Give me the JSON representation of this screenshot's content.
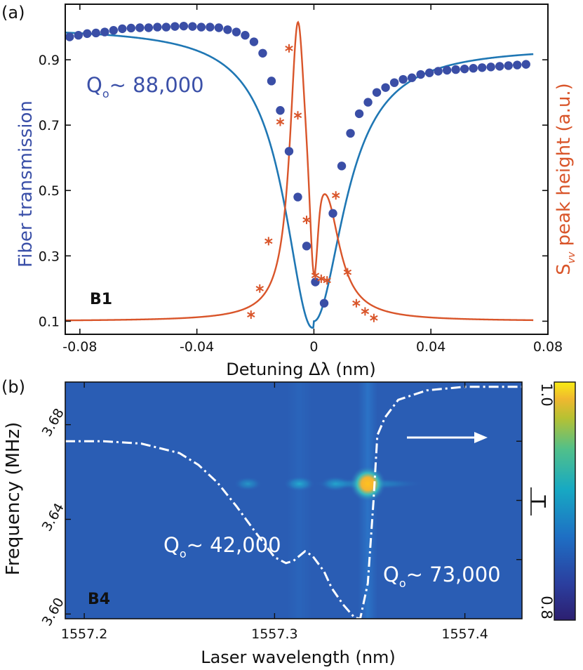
{
  "chart_data": [
    {
      "type": "scatter",
      "panel_label": "(a)",
      "sample_label": "B1",
      "annotation": {
        "q_prefix": "Q",
        "q_subscript": "o",
        "q_value": "~ 88,000"
      },
      "xlabel": "Detuning  Δλ (nm)",
      "ylabel_left": "Fiber transmission",
      "ylabel_right_prefix": "S",
      "ylabel_right_subscript": "vv",
      "ylabel_right_suffix": " peak height (a.u.)",
      "xlim": [
        -0.085,
        0.08
      ],
      "ylim": [
        0.06,
        1.07
      ],
      "xticks": [
        -0.08,
        -0.04,
        0,
        0.04,
        0.08
      ],
      "xtick_labels": [
        "-0.08",
        "-0.04",
        "0",
        "0.04",
        "0.08"
      ],
      "yticks": [
        0.1,
        0.3,
        0.5,
        0.7,
        0.9
      ],
      "ytick_labels": [
        "0.1",
        "0.3",
        "0.5",
        "0.7",
        "0.9"
      ],
      "colors": {
        "transmission": "#3a4ea6",
        "fit": "#1f77b4",
        "noise": "#d9552a"
      },
      "series": [
        {
          "kind": "transmission-data",
          "x": [
            -0.0835,
            -0.0805,
            -0.0775,
            -0.0745,
            -0.0715,
            -0.0685,
            -0.0655,
            -0.0625,
            -0.0595,
            -0.0565,
            -0.0535,
            -0.0505,
            -0.0475,
            -0.0445,
            -0.0415,
            -0.0385,
            -0.0355,
            -0.0325,
            -0.0295,
            -0.0265,
            -0.0235,
            -0.0205,
            -0.0175,
            -0.0145,
            -0.0115,
            -0.0085,
            -0.0055,
            -0.0025,
            0.0005,
            0.0035,
            0.0065,
            0.0095,
            0.0125,
            0.0155,
            0.0185,
            0.0215,
            0.0245,
            0.0275,
            0.0305,
            0.0335,
            0.0365,
            0.0395,
            0.0425,
            0.0455,
            0.0485,
            0.0515,
            0.0545,
            0.0575,
            0.0605,
            0.0635,
            0.0665,
            0.0695,
            0.0725
          ],
          "y": [
            0.97,
            0.975,
            0.98,
            0.982,
            0.985,
            0.99,
            0.995,
            0.997,
            0.998,
            0.998,
            1.0,
            1.0,
            1.002,
            1.003,
            1.002,
            1.0,
            1.0,
            0.998,
            0.992,
            0.985,
            0.975,
            0.955,
            0.92,
            0.835,
            0.745,
            0.62,
            0.48,
            0.33,
            0.22,
            0.155,
            0.43,
            0.575,
            0.675,
            0.735,
            0.77,
            0.8,
            0.815,
            0.83,
            0.84,
            0.845,
            0.855,
            0.86,
            0.865,
            0.868,
            0.87,
            0.872,
            0.874,
            0.876,
            0.878,
            0.88,
            0.882,
            0.884,
            0.886
          ]
        },
        {
          "kind": "noise-data",
          "x": [
            -0.0215,
            -0.0185,
            -0.0155,
            -0.0115,
            -0.0085,
            -0.0055,
            -0.0025,
            0.0005,
            0.0025,
            0.0045,
            0.0075,
            0.0115,
            0.0145,
            0.0175,
            0.0205
          ],
          "y": [
            0.12,
            0.2,
            0.345,
            0.71,
            0.935,
            0.73,
            0.41,
            0.24,
            0.23,
            0.225,
            0.485,
            0.25,
            0.155,
            0.13,
            0.11
          ]
        }
      ]
    },
    {
      "type": "heatmap",
      "panel_label": "(b)",
      "sample_label": "B4",
      "xlabel": "Laser wavelength (nm)",
      "ylabel": "Frequency (MHz)",
      "xlim": [
        1557.19,
        1557.43
      ],
      "ylim": [
        3.598,
        3.698
      ],
      "xticks": [
        1557.2,
        1557.3,
        1557.4
      ],
      "xtick_labels": [
        "1557.2",
        "1557.3",
        "1557.4"
      ],
      "yticks": [
        3.6,
        3.64,
        3.68
      ],
      "ytick_labels": [
        "3.60",
        "3.64",
        "3.68"
      ],
      "colorbar": {
        "min": 0.8,
        "max": 1.0,
        "min_label": "0.8",
        "max_label": "1.0",
        "label": "T"
      },
      "annotations": [
        {
          "q_prefix": "Q",
          "q_subscript": "o",
          "q_value": "~ 42,000"
        },
        {
          "q_prefix": "Q",
          "q_subscript": "o",
          "q_value": "~ 73,000"
        }
      ],
      "spots": [
        {
          "x": 1557.286,
          "y": 3.655,
          "intensity": 0.25
        },
        {
          "x": 1557.313,
          "y": 3.655,
          "intensity": 0.55
        },
        {
          "x": 1557.332,
          "y": 3.655,
          "intensity": 0.5
        },
        {
          "x": 1557.349,
          "y": 3.655,
          "intensity": 1.0
        }
      ],
      "transmission_trace": {
        "x": [
          1557.19,
          1557.21,
          1557.23,
          1557.25,
          1557.26,
          1557.27,
          1557.28,
          1557.29,
          1557.3,
          1557.306,
          1557.31,
          1557.316,
          1557.32,
          1557.326,
          1557.33,
          1557.336,
          1557.342,
          1557.345,
          1557.349,
          1557.352,
          1557.354,
          1557.358,
          1557.365,
          1557.38,
          1557.4,
          1557.43
        ],
        "T": [
          0.95,
          0.95,
          0.948,
          0.94,
          0.93,
          0.915,
          0.895,
          0.873,
          0.852,
          0.847,
          0.849,
          0.857,
          0.853,
          0.84,
          0.826,
          0.812,
          0.801,
          0.8,
          0.83,
          0.9,
          0.955,
          0.97,
          0.985,
          0.993,
          0.996,
          0.996
        ]
      }
    }
  ]
}
